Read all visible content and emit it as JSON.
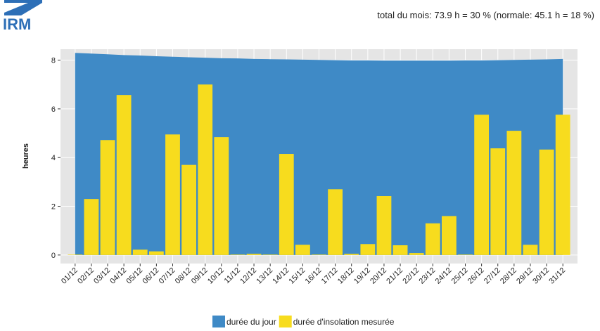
{
  "chart_data": {
    "type": "bar_area",
    "logo": "IRM",
    "subtitle": "total du mois: 73.9 h = 30 % (normale: 45.1 h = 18 %)",
    "ylabel": "heures",
    "categories": [
      "01/12",
      "02/12",
      "03/12",
      "04/12",
      "05/12",
      "06/12",
      "07/12",
      "08/12",
      "09/12",
      "10/12",
      "11/12",
      "12/12",
      "13/12",
      "14/12",
      "15/12",
      "16/12",
      "17/12",
      "18/12",
      "19/12",
      "20/12",
      "21/12",
      "22/12",
      "23/12",
      "24/12",
      "25/12",
      "26/12",
      "27/12",
      "28/12",
      "29/12",
      "30/12",
      "31/12"
    ],
    "series": [
      {
        "name": "durée du jour",
        "color": "#3f8ac6",
        "kind": "area",
        "values": [
          8.3,
          8.27,
          8.24,
          8.21,
          8.19,
          8.16,
          8.14,
          8.12,
          8.1,
          8.08,
          8.07,
          8.05,
          8.04,
          8.03,
          8.02,
          8.01,
          8.0,
          7.99,
          7.99,
          7.98,
          7.98,
          7.98,
          7.98,
          7.98,
          7.99,
          7.99,
          8.0,
          8.01,
          8.02,
          8.03,
          8.05
        ]
      },
      {
        "name": "durée d'insolation mesurée",
        "color": "#f7dc1e",
        "kind": "bar",
        "values": [
          0.02,
          2.3,
          4.72,
          6.57,
          0.22,
          0.15,
          4.95,
          3.7,
          7.0,
          4.84,
          0.02,
          0.05,
          0.02,
          4.15,
          0.42,
          0.02,
          2.7,
          0.05,
          0.45,
          2.42,
          0.4,
          0.08,
          1.3,
          1.6,
          0.02,
          5.76,
          4.38,
          5.1,
          0.42,
          4.33,
          5.76
        ]
      }
    ],
    "ylim": [
      -0.35,
      8.45
    ],
    "yticks": [
      0,
      2,
      4,
      6,
      8
    ],
    "grid": true
  }
}
